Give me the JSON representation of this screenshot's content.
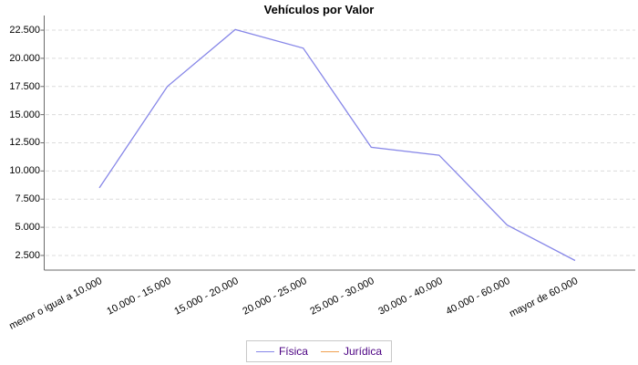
{
  "chart_data": {
    "type": "line",
    "title": "Vehículos por Valor",
    "categories": [
      "menor o igual a 10.000",
      "10.000 - 15.000",
      "15.000 - 20.000",
      "20.000 - 25.000",
      "25.000 - 30.000",
      "30.000 - 40.000",
      "40.000 - 60.000",
      "mayor de 60.000"
    ],
    "series": [
      {
        "name": "Física",
        "color": "#8787E8",
        "values": [
          8500,
          17500,
          22550,
          20900,
          12100,
          11400,
          5200,
          2050
        ]
      },
      {
        "name": "Jurídica",
        "color": "#F0A050",
        "values": []
      }
    ],
    "y_ticks": [
      22500,
      20000,
      17500,
      15000,
      12500,
      10000,
      7500,
      5000,
      2500
    ],
    "y_tick_labels": [
      "22.500",
      "20.000",
      "17.500",
      "15.000",
      "12.500",
      "10.000",
      "7.500",
      "5.000",
      "2.500"
    ],
    "ylim": [
      1200,
      23800
    ],
    "xlabel": "",
    "ylabel": "",
    "grid": "horizontal-dashed",
    "legend_position": "bottom"
  },
  "colors": {
    "grid": "#DCDCDC",
    "axis": "#6B6B6B",
    "legend_text": "#4B0082",
    "legend_border": "#C8C8C8",
    "background": "#FFFFFF"
  }
}
